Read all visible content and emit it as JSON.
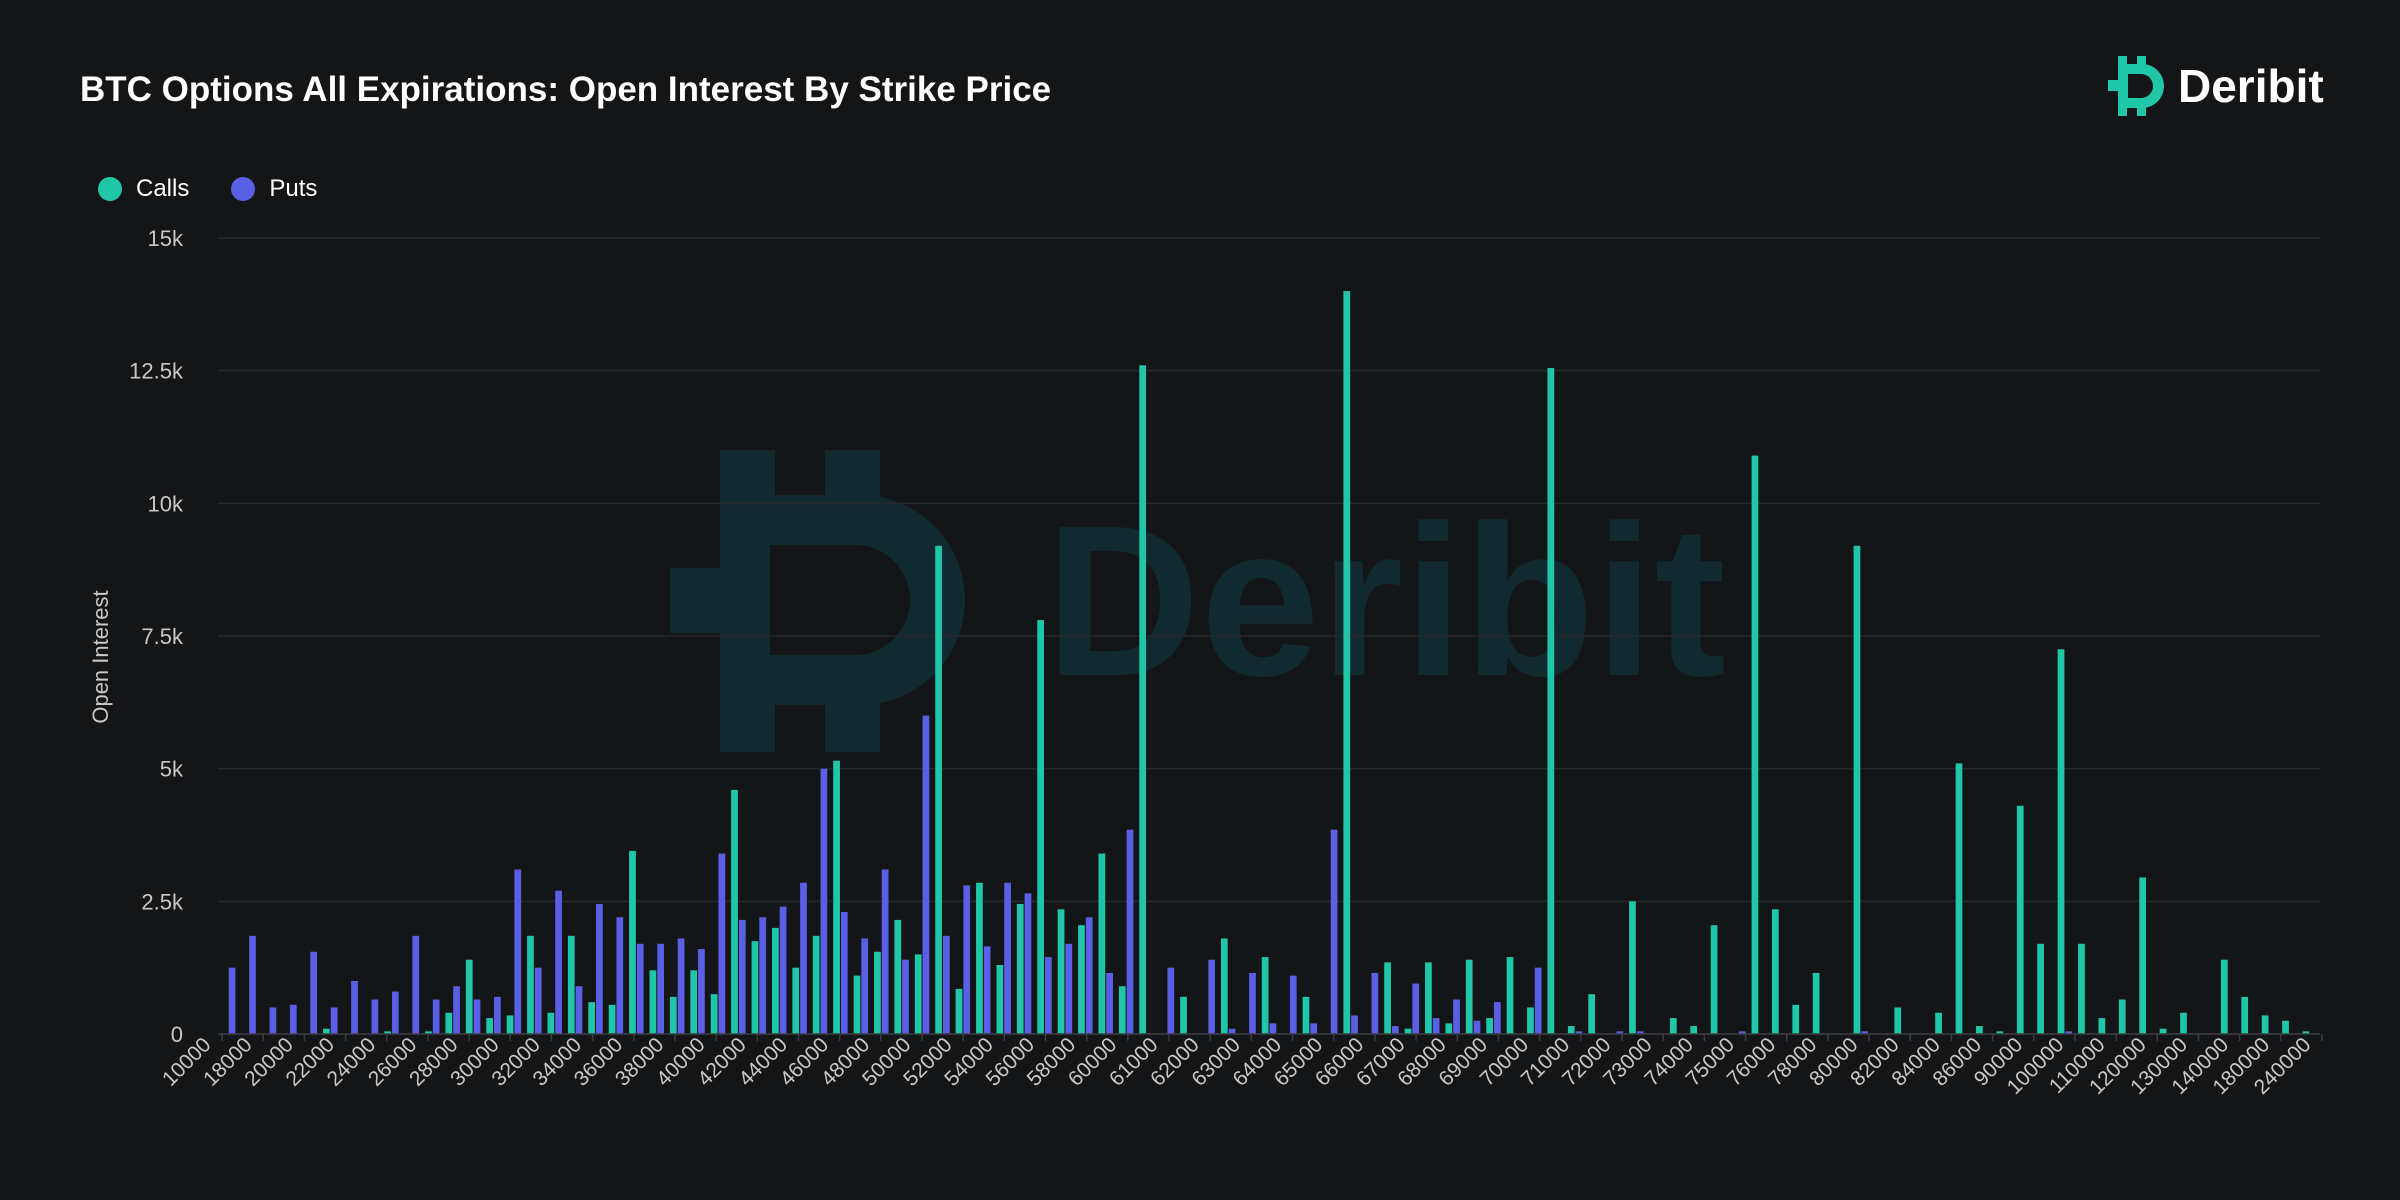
{
  "header": {
    "title": "BTC Options All Expirations: Open Interest By Strike Price",
    "brand": "Deribit"
  },
  "legend": {
    "calls_label": "Calls",
    "puts_label": "Puts"
  },
  "colors": {
    "calls": "#1fc7a8",
    "puts": "#5b5fe6",
    "grid": "#26282b",
    "axis_text": "#c8c8c8",
    "watermark": "#102a30"
  },
  "chart_data": {
    "type": "bar",
    "title": "BTC Options All Expirations: Open Interest By Strike Price",
    "xlabel": "",
    "ylabel": "Open Interest",
    "ylim": [
      0,
      15000
    ],
    "yticks": [
      0,
      2500,
      5000,
      7500,
      10000,
      12500,
      15000
    ],
    "ytick_labels": [
      "0",
      "2.5k",
      "5k",
      "7.5k",
      "10k",
      "12.5k",
      "15k"
    ],
    "grid": true,
    "legend_position": "top-left",
    "categories": [
      "10000",
      "15000",
      "18000",
      "19000",
      "20000",
      "21000",
      "22000",
      "23000",
      "24000",
      "25000",
      "26000",
      "27000",
      "28000",
      "29000",
      "30000",
      "31000",
      "32000",
      "33000",
      "34000",
      "35000",
      "36000",
      "37000",
      "38000",
      "39000",
      "40000",
      "41000",
      "42000",
      "43000",
      "44000",
      "45000",
      "46000",
      "47000",
      "48000",
      "49000",
      "50000",
      "51000",
      "52000",
      "53000",
      "54000",
      "55000",
      "56000",
      "57000",
      "58000",
      "59000",
      "60000",
      "60500",
      "61000",
      "61500",
      "62000",
      "62500",
      "63000",
      "63500",
      "64000",
      "64500",
      "65000",
      "65500",
      "66000",
      "66500",
      "67000",
      "67500",
      "68000",
      "68500",
      "69000",
      "69500",
      "70000",
      "70500",
      "71000",
      "71500",
      "72000",
      "72500",
      "73000",
      "73500",
      "74000",
      "74500",
      "75000",
      "75500",
      "76000",
      "77000",
      "78000",
      "79000",
      "80000",
      "81000",
      "82000",
      "83000",
      "84000",
      "85000",
      "86000",
      "88000",
      "90000",
      "95000",
      "100000",
      "105000",
      "110000",
      "115000",
      "120000",
      "125000",
      "130000",
      "135000",
      "140000",
      "150000",
      "180000",
      "200000",
      "240000"
    ],
    "tick_labels": [
      "10000",
      "18000",
      "20000",
      "22000",
      "24000",
      "26000",
      "28000",
      "30000",
      "32000",
      "34000",
      "36000",
      "38000",
      "40000",
      "42000",
      "44000",
      "46000",
      "48000",
      "50000",
      "52000",
      "54000",
      "56000",
      "58000",
      "60000",
      "61000",
      "62000",
      "63000",
      "64000",
      "65000",
      "66000",
      "67000",
      "68000",
      "69000",
      "70000",
      "71000",
      "72000",
      "73000",
      "74000",
      "75000",
      "76000",
      "78000",
      "80000",
      "82000",
      "84000",
      "86000",
      "90000",
      "100000",
      "110000",
      "120000",
      "130000",
      "140000",
      "180000",
      "240000"
    ],
    "series": [
      {
        "name": "Calls",
        "values": [
          0,
          0,
          0,
          0,
          0,
          100,
          0,
          0,
          50,
          0,
          50,
          400,
          1400,
          300,
          350,
          1850,
          400,
          1850,
          600,
          550,
          3450,
          1200,
          700,
          1200,
          750,
          4600,
          1750,
          2000,
          1250,
          1850,
          5150,
          1100,
          1550,
          2150,
          1500,
          9200,
          850,
          2850,
          1300,
          2450,
          7800,
          2350,
          2050,
          3400,
          900,
          12600,
          0,
          700,
          0,
          1800,
          0,
          1450,
          0,
          700,
          0,
          14000,
          0,
          1350,
          100,
          1350,
          200,
          1400,
          300,
          1450,
          500,
          12550,
          150,
          750,
          0,
          2500,
          0,
          300,
          150,
          2050,
          0,
          10900,
          2350,
          550,
          1150,
          0,
          9200,
          0,
          500,
          0,
          400,
          5100,
          150,
          50,
          4300,
          1700,
          7250,
          1700,
          300,
          650,
          2950,
          100,
          400,
          0,
          1400,
          700,
          350,
          250,
          50
        ]
      },
      {
        "name": "Puts",
        "values": [
          1250,
          1850,
          500,
          550,
          1550,
          500,
          1000,
          650,
          800,
          1850,
          650,
          900,
          650,
          700,
          3100,
          1250,
          2700,
          900,
          2450,
          2200,
          1700,
          1700,
          1800,
          1600,
          3400,
          2150,
          2200,
          2400,
          2850,
          5000,
          2300,
          1800,
          3100,
          1400,
          6000,
          1850,
          2800,
          1650,
          2850,
          2650,
          1450,
          1700,
          2200,
          1150,
          3850,
          0,
          1250,
          0,
          1400,
          100,
          1150,
          200,
          1100,
          200,
          3850,
          350,
          1150,
          150,
          950,
          300,
          650,
          250,
          600,
          0,
          1250,
          0,
          50,
          0,
          50,
          50,
          0,
          0,
          0,
          0,
          50,
          0,
          0,
          0,
          0,
          0,
          50,
          0,
          0,
          0,
          0,
          0,
          0,
          0,
          0,
          0,
          50,
          0,
          0,
          0,
          0,
          0,
          0,
          0,
          0,
          0,
          0,
          0,
          0
        ]
      }
    ]
  }
}
